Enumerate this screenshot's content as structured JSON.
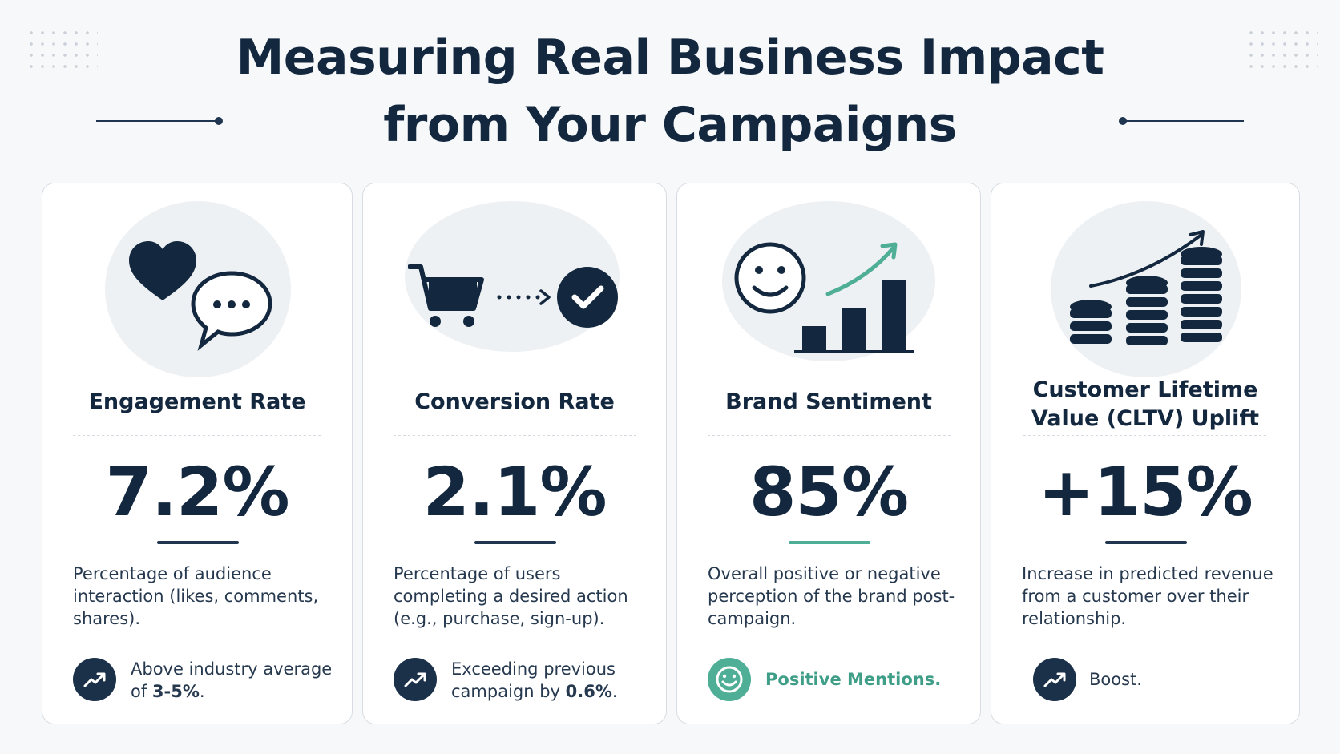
{
  "header": {
    "title_line1": "Measuring Real Business Impact",
    "title_line2": "from Your Campaigns"
  },
  "colors": {
    "navy": "#13283f",
    "teal": "#4fae96",
    "background": "#f7f8fa"
  },
  "cards": [
    {
      "icon": "heart-and-chat-bubble-icon",
      "name": "Engagement Rate",
      "value": "7.2%",
      "description": "Percentage of audience interaction (likes, comments, shares).",
      "note_icon": "trend-up-icon",
      "note_line1": "Above industry average",
      "note_line2_prefix": "of ",
      "note_line2_bold": "3-5%",
      "note_line2_suffix": "."
    },
    {
      "icon": "cart-to-checkmark-icon",
      "name": "Conversion Rate",
      "value": "2.1%",
      "description": "Percentage of users completing a desired action (e.g., purchase, sign-up).",
      "note_icon": "trend-up-icon",
      "note_line1": "Exceeding previous",
      "note_line2_prefix": "campaign by ",
      "note_line2_bold": "0.6%",
      "note_line2_suffix": "."
    },
    {
      "icon": "smiley-bar-chart-icon",
      "name": "Brand Sentiment",
      "value": "85%",
      "description": "Overall positive or negative perception of the brand post-campaign.",
      "note_icon": "smiley-icon",
      "note_text": "Positive Mentions."
    },
    {
      "icon": "coin-stacks-growth-icon",
      "name_line1": "Customer Lifetime",
      "name_line2": "Value (CLTV) Uplift",
      "value": "+15%",
      "description": "Increase in predicted revenue from a customer over their relationship.",
      "note_icon": "trend-up-icon",
      "note_text": "Boost."
    }
  ]
}
